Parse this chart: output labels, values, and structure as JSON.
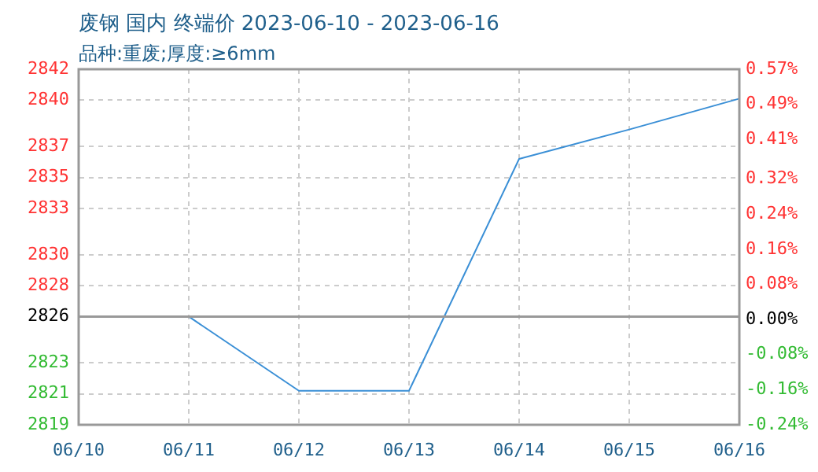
{
  "chart_data": {
    "type": "line",
    "title": "废钢 国内 终端价 2023-06-10 - 2023-06-16",
    "subtitle": "品种:重废;厚度:≥6mm",
    "categories": [
      "06/10",
      "06/11",
      "06/12",
      "06/13",
      "06/14",
      "06/15",
      "06/16"
    ],
    "series": [
      {
        "color": "#3a8fd6",
        "values": [
          2826,
          2826,
          2821.2,
          2821.2,
          2836.2,
          2838.1,
          2840.1
        ]
      }
    ],
    "ylim": [
      2819,
      2842
    ],
    "yticks": [
      2819,
      2821,
      2823,
      2826,
      2828,
      2830,
      2833,
      2835,
      2837,
      2840,
      2842
    ],
    "y2lim": [
      -0.24,
      0.57
    ],
    "y2ticks": [
      {
        "value": -0.24,
        "label": "-0.24%"
      },
      {
        "value": -0.16,
        "label": "-0.16%"
      },
      {
        "value": -0.08,
        "label": "-0.08%"
      },
      {
        "value": 0,
        "label": "0.00%"
      },
      {
        "value": 0.08,
        "label": "0.08%"
      },
      {
        "value": 0.16,
        "label": "0.16%"
      },
      {
        "value": 0.24,
        "label": "0.24%"
      },
      {
        "value": 0.32,
        "label": "0.32%"
      },
      {
        "value": 0.41,
        "label": "0.41%"
      },
      {
        "value": 0.49,
        "label": "0.49%"
      },
      {
        "value": 0.57,
        "label": "0.57%"
      }
    ],
    "ref_lines": [
      {
        "axis": "y",
        "value": 2826,
        "color": "#999999"
      }
    ],
    "grid": true,
    "legend": false,
    "marker": "none",
    "line_style": "solid"
  }
}
